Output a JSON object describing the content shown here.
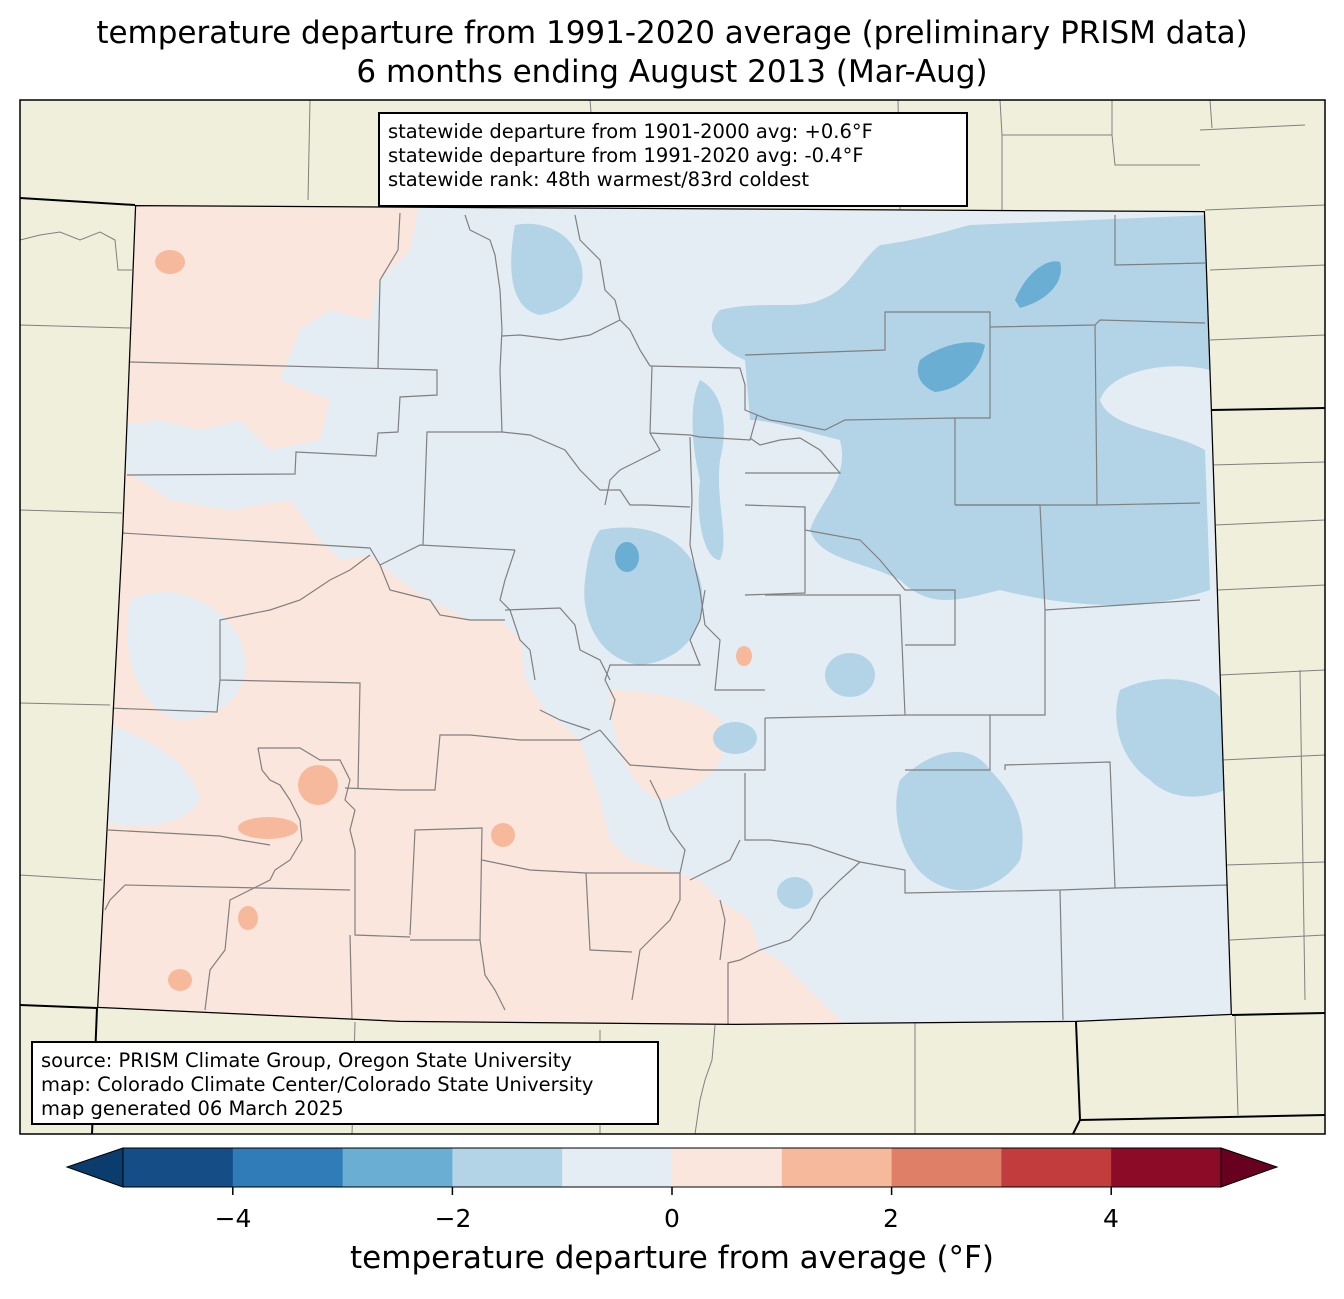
{
  "title": {
    "line1": "temperature departure from 1991-2020 average (preliminary PRISM data)",
    "line2": "6 months ending August 2013 (Mar-Aug)"
  },
  "stats_box": {
    "line1": "statewide departure from 1901-2000 avg: +0.6°F",
    "line2": "statewide departure from 1991-2020 avg: -0.4°F",
    "line3": "statewide rank: 48th warmest/83rd coldest"
  },
  "source_box": {
    "line1": "source: PRISM Climate Group, Oregon State University",
    "line2": "map: Colorado Climate Center/Colorado State University",
    "line3": "map generated 06 March 2025"
  },
  "colorbar": {
    "label": "temperature departure from average (°F)",
    "ticks": [
      "−4",
      "−2",
      "0",
      "2",
      "4"
    ],
    "min": -5,
    "max": 5,
    "step": 1,
    "extend": "both",
    "colors": [
      "#0b3c6e",
      "#154d87",
      "#2f7cb8",
      "#6aaed3",
      "#b2d4e6",
      "#e5edf4",
      "#fae6dc",
      "#f7b99c",
      "#e07f68",
      "#c23b3d",
      "#8c0b26",
      "#68001f"
    ]
  },
  "map_colors": {
    "outside": "#efefdc",
    "neutral_cool": "#e5edf4",
    "neutral_warm": "#fae6dc",
    "cool_1": "#b2d4e6",
    "cool_2": "#6aaed3",
    "warm_1": "#f7b99c",
    "county_line": "#808080",
    "state_line": "#000000"
  }
}
